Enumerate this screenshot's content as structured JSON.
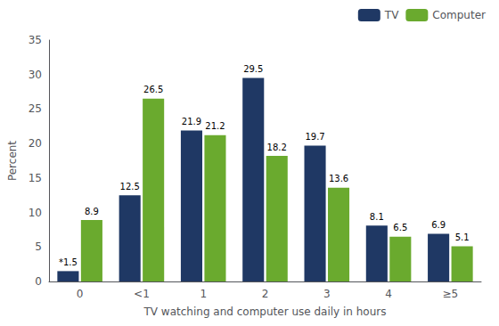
{
  "chart_data": {
    "type": "bar",
    "categories": [
      "0",
      "<1",
      "1",
      "2",
      "3",
      "4",
      "≥5"
    ],
    "series": [
      {
        "name": "TV",
        "color": "#1f3864",
        "values": [
          1.5,
          12.5,
          21.9,
          29.5,
          19.7,
          8.1,
          6.9
        ],
        "value_labels": [
          "*1.5",
          "12.5",
          "21.9",
          "29.5",
          "19.7",
          "8.1",
          "6.9"
        ]
      },
      {
        "name": "Computer",
        "color": "#6aaa2e",
        "values": [
          8.9,
          26.5,
          21.2,
          18.2,
          13.6,
          6.5,
          5.1
        ],
        "value_labels": [
          "8.9",
          "26.5",
          "21.2",
          "18.2",
          "13.6",
          "6.5",
          "5.1"
        ]
      }
    ],
    "xlabel": "TV watching and computer use daily in hours",
    "ylabel": "Percent",
    "ylim": [
      0,
      35
    ],
    "yticks": [
      0,
      5,
      10,
      15,
      20,
      25,
      30,
      35
    ],
    "data_labels": true,
    "legend": "upper right",
    "grid": false
  }
}
